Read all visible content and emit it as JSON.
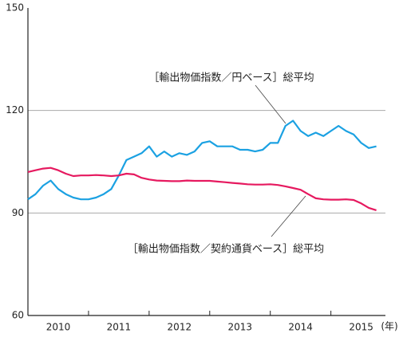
{
  "chart_data": {
    "type": "line",
    "x": [
      2010,
      2010.125,
      2010.25,
      2010.375,
      2010.5,
      2010.625,
      2010.75,
      2010.875,
      2011,
      2011.125,
      2011.25,
      2011.375,
      2011.5,
      2011.625,
      2011.75,
      2011.875,
      2012,
      2012.125,
      2012.25,
      2012.375,
      2012.5,
      2012.625,
      2012.75,
      2012.875,
      2013,
      2013.125,
      2013.25,
      2013.375,
      2013.5,
      2013.625,
      2013.75,
      2013.875,
      2014,
      2014.125,
      2014.25,
      2014.375,
      2014.5,
      2014.625,
      2014.75,
      2014.875,
      2015,
      2015.125,
      2015.25,
      2015.375,
      2015.5,
      2015.625,
      2015.75
    ],
    "series": [
      {
        "name": "［輸出物価指数／円ベース］総平均",
        "color": "#1ba1e2",
        "values": [
          94,
          95.5,
          98,
          99.5,
          97,
          95.5,
          94.5,
          94,
          94,
          94.5,
          95.5,
          97,
          101,
          105.5,
          106.5,
          107.5,
          109.5,
          106.5,
          108,
          106.5,
          107.5,
          107,
          108,
          110.5,
          111,
          109.5,
          109.5,
          109.5,
          108.5,
          108.5,
          108,
          108.5,
          110.5,
          110.5,
          115.5,
          117,
          114,
          112.5,
          113.5,
          112.5,
          114,
          115.5,
          114,
          113,
          110.5,
          109,
          109.5
        ]
      },
      {
        "name": "［輸出物価指数／契約通貨ベース］総平均",
        "color": "#e6195f",
        "values": [
          102,
          102.5,
          103,
          103.2,
          102.5,
          101.5,
          100.8,
          101,
          101,
          101.1,
          101,
          100.8,
          101,
          101.5,
          101.3,
          100.3,
          99.8,
          99.5,
          99.4,
          99.3,
          99.3,
          99.5,
          99.4,
          99.4,
          99.4,
          99.2,
          99,
          98.8,
          98.6,
          98.4,
          98.3,
          98.3,
          98.4,
          98.2,
          97.8,
          97.3,
          96.8,
          95.5,
          94.3,
          94,
          93.9,
          93.9,
          94,
          93.8,
          92.8,
          91.5,
          90.8
        ]
      }
    ],
    "x_label": "(年)",
    "xlim": [
      2010,
      2015.9
    ],
    "xticks": [
      {
        "value": 2010,
        "label": "2010"
      },
      {
        "value": 2011,
        "label": "2011"
      },
      {
        "value": 2012,
        "label": "2012"
      },
      {
        "value": 2013,
        "label": "2013"
      },
      {
        "value": 2014,
        "label": "2014"
      },
      {
        "value": 2015,
        "label": "2015"
      }
    ],
    "ylim": [
      60,
      150
    ],
    "yticks": [
      60,
      90,
      120,
      150
    ],
    "grid": true
  }
}
